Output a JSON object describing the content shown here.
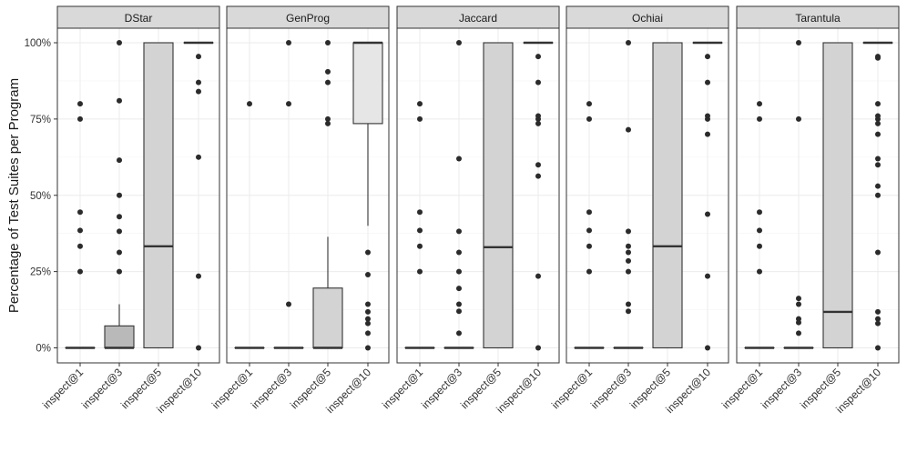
{
  "chart_data": {
    "type": "boxplot",
    "facet_by": "technique",
    "ylabel": "Percentage of Test Suites per Program",
    "xlabel": "",
    "ylim": [
      -5,
      105
    ],
    "yticks": [
      0,
      25,
      50,
      75,
      100
    ],
    "ytick_labels": [
      "0%",
      "25%",
      "50%",
      "75%",
      "100%"
    ],
    "categories": [
      "inspect@1",
      "inspect@3",
      "inspect@5",
      "inspect@10"
    ],
    "grid": true,
    "colors": {
      "panel_header": "#d9d9d9",
      "box_dark": "#b9b9b9",
      "box_mid": "#d3d3d3",
      "box_light": "#e6e6e6",
      "stroke": "#333333",
      "point": "#2b2b2b",
      "grid": "#ebebeb"
    },
    "panels": [
      {
        "title": "DStar",
        "boxes": [
          {
            "category": "inspect@1",
            "q1": 0,
            "median": 0,
            "q3": 0,
            "whisker_low": 0,
            "whisker_high": 0,
            "outliers": [
              80,
              75,
              44.5,
              38.5,
              33.3,
              25
            ],
            "fill": "dark"
          },
          {
            "category": "inspect@3",
            "q1": 0,
            "median": 0,
            "q3": 7.2,
            "whisker_low": 0,
            "whisker_high": 14.3,
            "outliers": [
              100,
              81,
              61.5,
              50,
              43,
              38.2,
              31.3,
              25
            ],
            "fill": "dark"
          },
          {
            "category": "inspect@5",
            "q1": 0,
            "median": 33.3,
            "q3": 100,
            "whisker_low": 0,
            "whisker_high": 100,
            "outliers": [],
            "fill": "mid"
          },
          {
            "category": "inspect@10",
            "q1": 100,
            "median": 100,
            "q3": 100,
            "whisker_low": 100,
            "whisker_high": 100,
            "outliers": [
              95.5,
              87,
              84,
              62.5,
              23.5,
              0
            ],
            "fill": "light"
          }
        ]
      },
      {
        "title": "GenProg",
        "boxes": [
          {
            "category": "inspect@1",
            "q1": 0,
            "median": 0,
            "q3": 0,
            "whisker_low": 0,
            "whisker_high": 0,
            "outliers": [
              80
            ],
            "fill": "dark"
          },
          {
            "category": "inspect@3",
            "q1": 0,
            "median": 0,
            "q3": 0,
            "whisker_low": 0,
            "whisker_high": 0,
            "outliers": [
              100,
              80,
              14.3
            ],
            "fill": "dark"
          },
          {
            "category": "inspect@5",
            "q1": 0,
            "median": 0,
            "q3": 19.6,
            "whisker_low": 0,
            "whisker_high": 36.4,
            "outliers": [
              100,
              90.5,
              87,
              75,
              73.5
            ],
            "fill": "mid"
          },
          {
            "category": "inspect@10",
            "q1": 73.5,
            "median": 100,
            "q3": 100,
            "whisker_low": 40,
            "whisker_high": 100,
            "outliers": [
              31.3,
              24,
              14.3,
              11.8,
              9.5,
              8,
              4.8,
              0
            ],
            "fill": "light"
          }
        ]
      },
      {
        "title": "Jaccard",
        "boxes": [
          {
            "category": "inspect@1",
            "q1": 0,
            "median": 0,
            "q3": 0,
            "whisker_low": 0,
            "whisker_high": 0,
            "outliers": [
              80,
              75,
              44.5,
              38.5,
              33.3,
              25
            ],
            "fill": "dark"
          },
          {
            "category": "inspect@3",
            "q1": 0,
            "median": 0,
            "q3": 0,
            "whisker_low": 0,
            "whisker_high": 0,
            "outliers": [
              100,
              62,
              38.2,
              31.3,
              25,
              19.5,
              14.3,
              12,
              4.8
            ],
            "fill": "dark"
          },
          {
            "category": "inspect@5",
            "q1": 0,
            "median": 33,
            "q3": 100,
            "whisker_low": 0,
            "whisker_high": 100,
            "outliers": [],
            "fill": "mid"
          },
          {
            "category": "inspect@10",
            "q1": 100,
            "median": 100,
            "q3": 100,
            "whisker_low": 100,
            "whisker_high": 100,
            "outliers": [
              95.5,
              87,
              76,
              75,
              73.5,
              60,
              56.3,
              23.5,
              0
            ],
            "fill": "light"
          }
        ]
      },
      {
        "title": "Ochiai",
        "boxes": [
          {
            "category": "inspect@1",
            "q1": 0,
            "median": 0,
            "q3": 0,
            "whisker_low": 0,
            "whisker_high": 0,
            "outliers": [
              80,
              75,
              44.5,
              38.5,
              33.3,
              25
            ],
            "fill": "dark"
          },
          {
            "category": "inspect@3",
            "q1": 0,
            "median": 0,
            "q3": 0,
            "whisker_low": 0,
            "whisker_high": 0,
            "outliers": [
              100,
              71.5,
              38.2,
              33.3,
              31.3,
              28.5,
              25,
              14.3,
              12
            ],
            "fill": "dark"
          },
          {
            "category": "inspect@5",
            "q1": 0,
            "median": 33.3,
            "q3": 100,
            "whisker_low": 0,
            "whisker_high": 100,
            "outliers": [],
            "fill": "mid"
          },
          {
            "category": "inspect@10",
            "q1": 100,
            "median": 100,
            "q3": 100,
            "whisker_low": 100,
            "whisker_high": 100,
            "outliers": [
              95.5,
              87,
              76,
              75,
              70,
              43.8,
              23.5,
              0
            ],
            "fill": "light"
          }
        ]
      },
      {
        "title": "Tarantula",
        "boxes": [
          {
            "category": "inspect@1",
            "q1": 0,
            "median": 0,
            "q3": 0,
            "whisker_low": 0,
            "whisker_high": 0,
            "outliers": [
              80,
              75,
              44.5,
              38.5,
              33.3,
              25
            ],
            "fill": "dark"
          },
          {
            "category": "inspect@3",
            "q1": 0,
            "median": 0,
            "q3": 0,
            "whisker_low": 0,
            "whisker_high": 0,
            "outliers": [
              100,
              75,
              16.2,
              14.3,
              9.5,
              8.3,
              4.8
            ],
            "fill": "dark"
          },
          {
            "category": "inspect@5",
            "q1": 0,
            "median": 11.8,
            "q3": 100,
            "whisker_low": 0,
            "whisker_high": 100,
            "outliers": [],
            "fill": "mid"
          },
          {
            "category": "inspect@10",
            "q1": 100,
            "median": 100,
            "q3": 100,
            "whisker_low": 100,
            "whisker_high": 100,
            "outliers": [
              95.5,
              95,
              80,
              76,
              75,
              73.5,
              70,
              62,
              60,
              53,
              50,
              31.3,
              11.8,
              9.5,
              8,
              0
            ],
            "fill": "light"
          }
        ]
      }
    ]
  }
}
